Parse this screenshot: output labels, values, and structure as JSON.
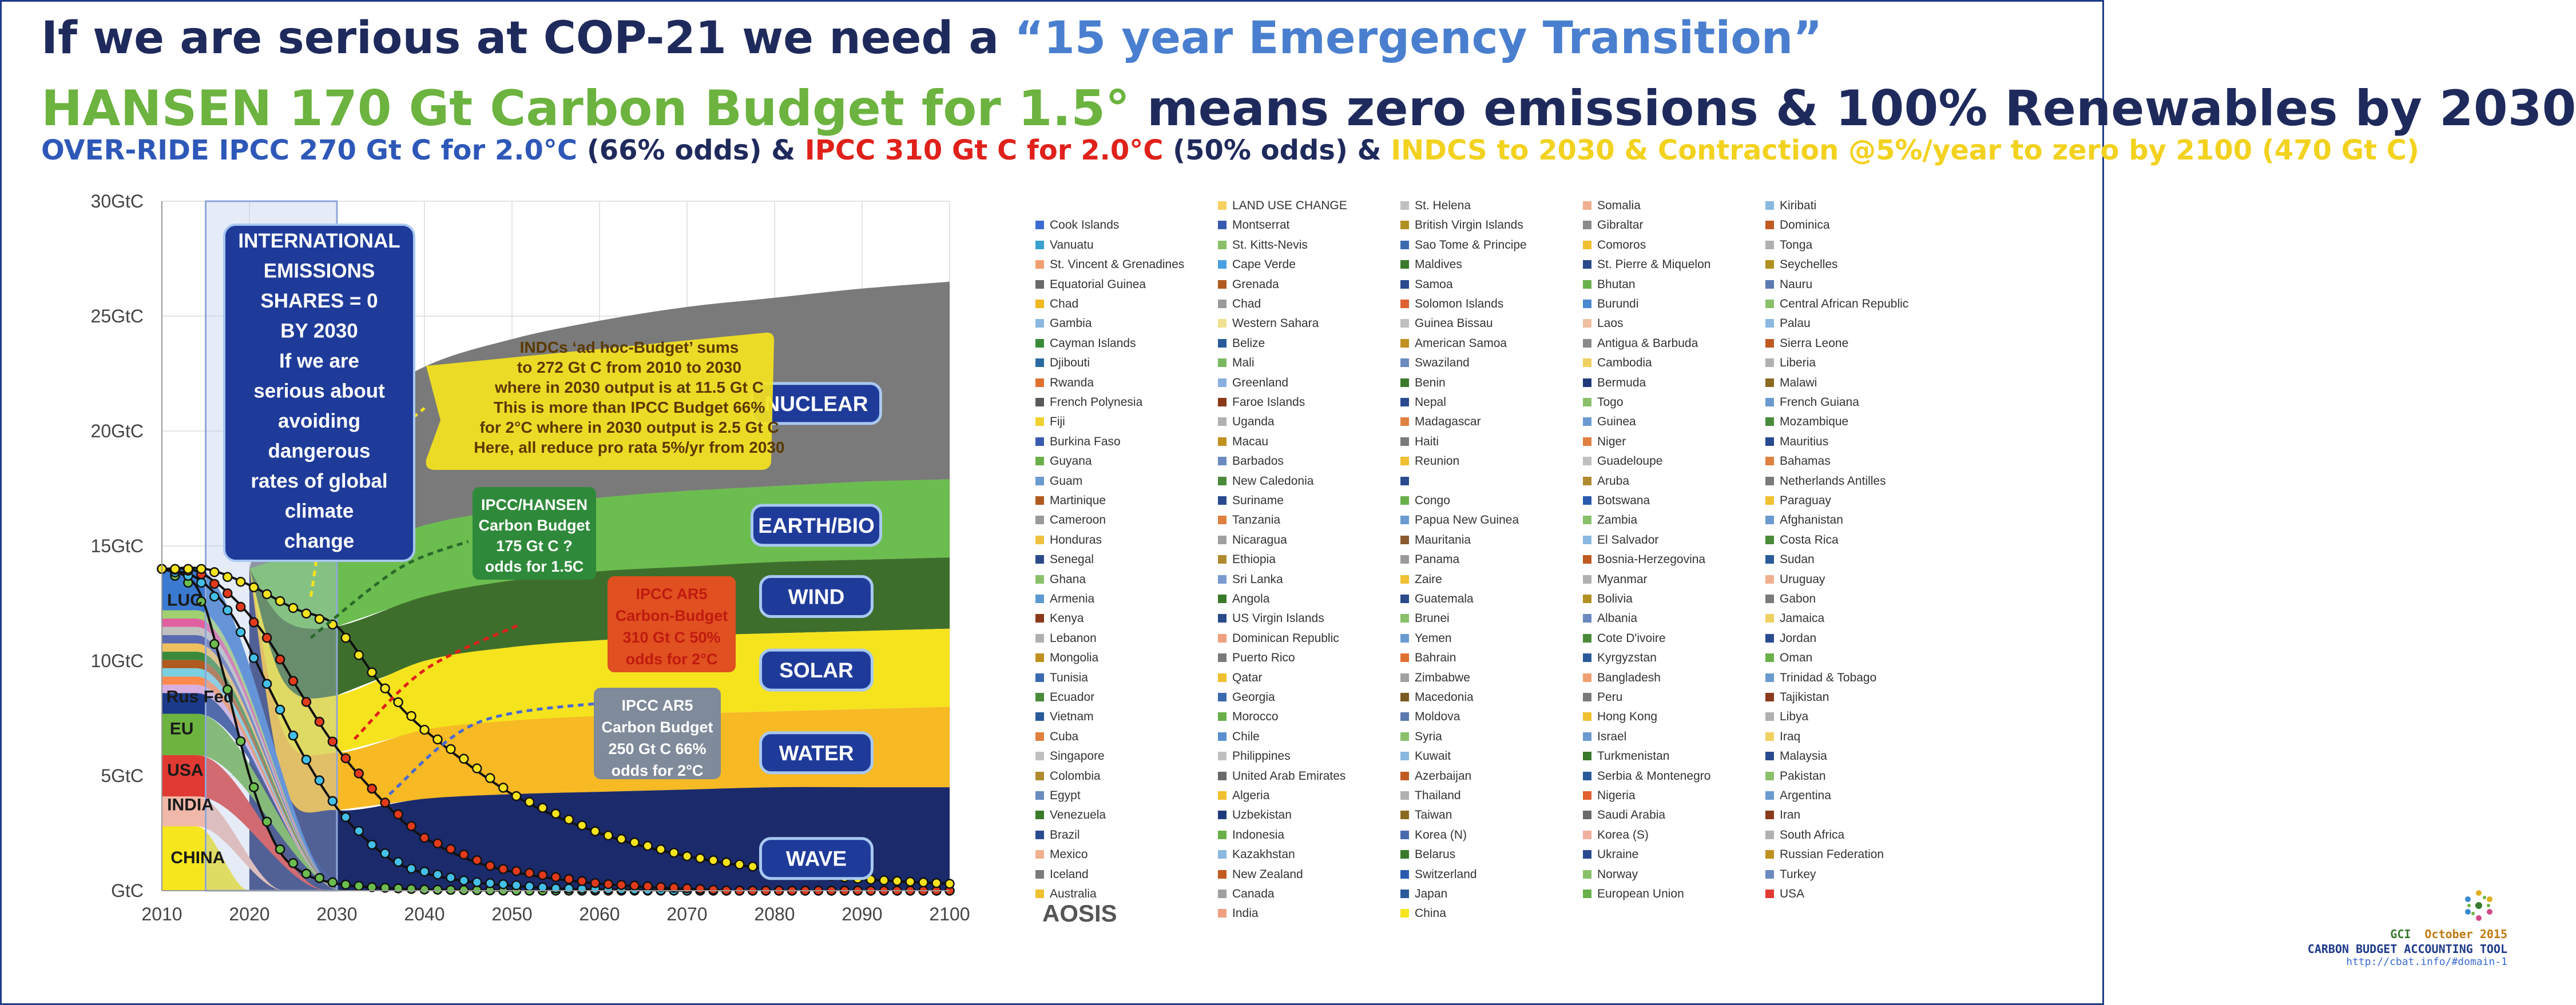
{
  "header": {
    "line1_a": "If we are serious at COP-21 we need a ",
    "line1_b": "“15 year Emergency Transition”",
    "line2_a": "HANSEN 170 Gt Carbon Budget for 1.5°",
    "line2_b": " means zero emissions & 100% Renewables by 2030",
    "line3_a": "OVER-RIDE IPCC 270 Gt C for 2.0°C",
    "line3_b": " (66% odds) & ",
    "line3_c": "IPCC 310 Gt C for 2.0°C",
    "line3_d": " (50% odds) & ",
    "line3_e": "INDCS to 2030 & Contraction @5%/year to zero by 2100 (470 Gt C)"
  },
  "chart_data": {
    "type": "area",
    "x": [
      2010,
      2020,
      2030,
      2040,
      2050,
      2060,
      2070,
      2080,
      2090,
      2100
    ],
    "xlim": [
      2010,
      2100
    ],
    "ylim": [
      0,
      30
    ],
    "x_ticks": [
      "2010",
      "2020",
      "2030",
      "2040",
      "2050",
      "2060",
      "2070",
      "2080",
      "2090",
      "2100"
    ],
    "y_ticks": [
      "GtC",
      "5GtC",
      "10GtC",
      "15GtC",
      "20GtC",
      "25GtC",
      "30GtC"
    ],
    "renewables_stack": {
      "names": [
        "WAVE",
        "WATER",
        "SOLAR",
        "WIND",
        "EARTH/BIO",
        "NUCLEAR"
      ],
      "colors": [
        "#1b2a6b",
        "#f7b924",
        "#f5e31e",
        "#3e6e2c",
        "#6cbd4f",
        "#7a7a7a"
      ],
      "cumulative_tops": [
        [
          0,
          0,
          3.5,
          4.0,
          4.2,
          4.3,
          4.4,
          4.5,
          4.5,
          4.5
        ],
        [
          0,
          0,
          6.0,
          7.0,
          7.4,
          7.6,
          7.7,
          7.8,
          7.9,
          8.0
        ],
        [
          0,
          0,
          8.5,
          10.0,
          10.6,
          10.9,
          11.1,
          11.2,
          11.3,
          11.4
        ],
        [
          0,
          0,
          11.5,
          12.8,
          13.5,
          13.9,
          14.1,
          14.3,
          14.4,
          14.5
        ],
        [
          0,
          0,
          14.5,
          15.9,
          16.6,
          17.1,
          17.4,
          17.6,
          17.8,
          17.9
        ],
        [
          0,
          0,
          20.5,
          22.8,
          24.0,
          24.8,
          25.4,
          25.8,
          26.2,
          26.5
        ]
      ]
    },
    "regional_stack_2010": {
      "names": [
        "CHINA",
        "INDIA",
        "USA",
        "EU",
        "Rus Fed",
        "LUC"
      ],
      "colors": [
        "#f5e61e",
        "#f0b8a8",
        "#e03a32",
        "#6cb33f",
        "#1b3a8a",
        "#3a7ad0"
      ],
      "tops": [
        2.8,
        4.1,
        5.9,
        7.7,
        8.6,
        14.0
      ]
    },
    "curves": [
      {
        "name": "IPCC/HANSEN Carbon Budget",
        "color": "#6cbd4f",
        "x": [
          2010,
          2014,
          2017,
          2020,
          2023,
          2026,
          2030,
          2034,
          2040,
          2050
        ],
        "y": [
          14.0,
          13.2,
          9.5,
          5.0,
          2.0,
          0.8,
          0.3,
          0.15,
          0.05,
          0
        ]
      },
      {
        "name": "IPCC AR5 Carbon Budget 250 Gt C 66%",
        "color": "#44c0e8",
        "x": [
          2010,
          2014,
          2018,
          2022,
          2026,
          2030,
          2034,
          2038,
          2045,
          2055,
          2070
        ],
        "y": [
          14.0,
          13.6,
          12.0,
          9.0,
          6.0,
          3.6,
          2.0,
          1.0,
          0.4,
          0.1,
          0
        ]
      },
      {
        "name": "IPCC AR5 Carbon-Budget 310 Gt C 50%",
        "color": "#e23a1c",
        "x": [
          2010,
          2014,
          2018,
          2022,
          2026,
          2030,
          2035,
          2040,
          2048,
          2060,
          2075
        ],
        "y": [
          14.0,
          13.9,
          12.8,
          11.0,
          8.5,
          6.2,
          4.0,
          2.3,
          1.0,
          0.3,
          0
        ]
      },
      {
        "name": "INDCs ad hoc-Budget",
        "color": "#f5e31e",
        "x": [
          2010,
          2015,
          2020,
          2025,
          2030,
          2035,
          2040,
          2050,
          2060,
          2070,
          2080,
          2090,
          2100
        ],
        "y": [
          14.0,
          14.0,
          13.3,
          12.3,
          11.5,
          9.0,
          7.0,
          4.2,
          2.5,
          1.5,
          0.9,
          0.5,
          0.3
        ]
      }
    ],
    "annotations": {
      "international": [
        "INTERNATIONAL",
        "EMISSIONS",
        "SHARES = 0",
        "BY 2030",
        "If we are",
        "serious about",
        "avoiding",
        "dangerous",
        "rates of global",
        "climate",
        "change"
      ],
      "indcs": [
        "INDCs ‘ad hoc-Budget’ sums",
        "to 272 Gt C from 2010 to 2030",
        "where in 2030 output is at 11.5 Gt C",
        "This is more than IPCC Budget 66%",
        "for 2°C where in 2030 output is 2.5 Gt C",
        "Here, all reduce pro rata 5%/yr from 2030"
      ],
      "hansen": [
        "IPCC/HANSEN",
        "Carbon Budget",
        "175 Gt C ?",
        "odds for 1.5C"
      ],
      "ar5_50": [
        "IPCC AR5",
        "Carbon-Budget",
        "310 Gt C 50%",
        "odds for 2°C"
      ],
      "ar5_66": [
        "IPCC AR5",
        "Carbon Budget",
        "250 Gt C 66%",
        "odds for 2°C"
      ]
    }
  },
  "legend": {
    "columns": [
      [
        [
          "#ffffff",
          ""
        ],
        [
          "#3b6bd0",
          "Cook Islands"
        ],
        [
          "#3aa0d0",
          "Vanuatu"
        ],
        [
          "#f0a070",
          "St. Vincent & Grenadines"
        ],
        [
          "#6a6a6a",
          "Equatorial Guinea"
        ],
        [
          "#f0b820",
          "Chad"
        ],
        [
          "#8ab8e0",
          "Gambia"
        ],
        [
          "#3a8a3a",
          "Cayman Islands"
        ],
        [
          "#2a6aa0",
          "Djibouti"
        ],
        [
          "#e07030",
          "Rwanda"
        ],
        [
          "#5a5a5a",
          "French Polynesia"
        ],
        [
          "#f0d030",
          "Fiji"
        ],
        [
          "#3a5ab0",
          "Burkina Faso"
        ],
        [
          "#6ab04a",
          "Guyana"
        ],
        [
          "#6a9ad0",
          "Guam"
        ],
        [
          "#b05a20",
          "Martinique"
        ],
        [
          "#9a9a9a",
          "Cameroon"
        ],
        [
          "#f0c040",
          "Honduras"
        ],
        [
          "#2a4a8a",
          "Senegal"
        ],
        [
          "#8ac06a",
          "Ghana"
        ],
        [
          "#5a9ad0",
          "Armenia"
        ],
        [
          "#8a3a1a",
          "Kenya"
        ],
        [
          "#b0b0b0",
          "Lebanon"
        ],
        [
          "#c09020",
          "Mongolia"
        ],
        [
          "#3a6ab0",
          "Tunisia"
        ],
        [
          "#4a8a3a",
          "Ecuador"
        ],
        [
          "#2a5a9a",
          "Vietnam"
        ],
        [
          "#e08040",
          "Cuba"
        ],
        [
          "#c0c0c0",
          "Singapore"
        ],
        [
          "#b08a30",
          "Colombia"
        ],
        [
          "#6a8ac0",
          "Egypt"
        ],
        [
          "#3a7a2a",
          "Venezuela"
        ],
        [
          "#2a4a90",
          "Brazil"
        ],
        [
          "#f0b090",
          "Mexico"
        ],
        [
          "#7a7a7a",
          "Iceland"
        ],
        [
          "#f0c030",
          "Australia"
        ]
      ],
      [
        [
          "#f7d060",
          "LAND USE CHANGE"
        ],
        [
          "#3a5ab0",
          "Montserrat"
        ],
        [
          "#8ac06a",
          "St. Kitts-Nevis"
        ],
        [
          "#4aa0e0",
          "Cape Verde"
        ],
        [
          "#b05a20",
          "Grenada"
        ],
        [
          "#9a9a9a",
          "Chad"
        ],
        [
          "#f0e090",
          "Western Sahara"
        ],
        [
          "#2a5a9a",
          "Belize"
        ],
        [
          "#7ab860",
          "Mali"
        ],
        [
          "#8ab0e0",
          "Greenland"
        ],
        [
          "#8a3a1a",
          "Faroe Islands"
        ],
        [
          "#b0b0b0",
          "Uganda"
        ],
        [
          "#c09020",
          "Macau"
        ],
        [
          "#6a8ac0",
          "Barbados"
        ],
        [
          "#4a8a3a",
          "New Caledonia"
        ],
        [
          "#2a4a90",
          "Suriname"
        ],
        [
          "#e08040",
          "Tanzania"
        ],
        [
          "#a0a0a0",
          "Nicaragua"
        ],
        [
          "#b08a30",
          "Ethiopia"
        ],
        [
          "#7a9ad0",
          "Sri Lanka"
        ],
        [
          "#3a7a2a",
          "Angola"
        ],
        [
          "#2a4a8a",
          "US Virgin Islands"
        ],
        [
          "#f0a080",
          "Dominican Republic"
        ],
        [
          "#7a7a7a",
          "Puerto Rico"
        ],
        [
          "#f0c030",
          "Qatar"
        ],
        [
          "#3a6ab0",
          "Georgia"
        ],
        [
          "#6ab04a",
          "Morocco"
        ],
        [
          "#5a90d0",
          "Chile"
        ],
        [
          "#c0c0c0",
          "Philippines"
        ],
        [
          "#6a6a6a",
          "United Arab Emirates"
        ],
        [
          "#f0c030",
          "Algeria"
        ],
        [
          "#1f3a7a",
          "Uzbekistan"
        ],
        [
          "#6ab04a",
          "Indonesia"
        ],
        [
          "#8ab8e0",
          "Kazakhstan"
        ],
        [
          "#c05a20",
          "New Zealand"
        ],
        [
          "#a0a0a0",
          "Canada"
        ],
        [
          "#f0a080",
          "India"
        ]
      ],
      [
        [
          "#c0c0c0",
          "St. Helena"
        ],
        [
          "#b09020",
          "British Virgin Islands"
        ],
        [
          "#3a6ab0",
          "Sao Tome & Principe"
        ],
        [
          "#3a7a2a",
          "Maldives"
        ],
        [
          "#2a4a90",
          "Samoa"
        ],
        [
          "#e06030",
          "Solomon Islands"
        ],
        [
          "#c0c0c0",
          "Guinea Bissau"
        ],
        [
          "#c09020",
          "American Samoa"
        ],
        [
          "#6a8ac0",
          "Swaziland"
        ],
        [
          "#3a7a2a",
          "Benin"
        ],
        [
          "#2a4a90",
          "Nepal"
        ],
        [
          "#e08040",
          "Madagascar"
        ],
        [
          "#7a7a7a",
          "Haiti"
        ],
        [
          "#f0c030",
          "Reunion"
        ],
        [
          "#2a4a90",
          ""
        ],
        [
          "#6ab04a",
          "Congo"
        ],
        [
          "#6a9ad0",
          "Papua New Guinea"
        ],
        [
          "#8a5a30",
          "Mauritania"
        ],
        [
          "#9a9a9a",
          "Panama"
        ],
        [
          "#f0c030",
          "Zaire"
        ],
        [
          "#2a4a8a",
          "Guatemala"
        ],
        [
          "#8ac06a",
          "Brunei"
        ],
        [
          "#6a9ad0",
          "Yemen"
        ],
        [
          "#e07030",
          "Bahrain"
        ],
        [
          "#a0a0a0",
          "Zimbabwe"
        ],
        [
          "#7a5a20",
          "Macedonia"
        ],
        [
          "#5a7ab0",
          "Moldova"
        ],
        [
          "#8ac06a",
          "Syria"
        ],
        [
          "#8ab8e0",
          "Kuwait"
        ],
        [
          "#c05a20",
          "Azerbaijan"
        ],
        [
          "#b0b0b0",
          "Thailand"
        ],
        [
          "#8a6a20",
          "Taiwan"
        ],
        [
          "#4a6ab0",
          "Korea (N)"
        ],
        [
          "#3a7a2a",
          "Belarus"
        ],
        [
          "#2a5ab0",
          "Switzerland"
        ],
        [
          "#2a5a9a",
          "Japan"
        ],
        [
          "#f5e61e",
          "China"
        ]
      ],
      [
        [
          "#f0b090",
          "Somalia"
        ],
        [
          "#8a8a8a",
          "Gibraltar"
        ],
        [
          "#f0c030",
          "Comoros"
        ],
        [
          "#2a4a8a",
          "St. Pierre & Miquelon"
        ],
        [
          "#6ab04a",
          "Bhutan"
        ],
        [
          "#4a8ad0",
          "Burundi"
        ],
        [
          "#f0c0a0",
          "Laos"
        ],
        [
          "#8a8a8a",
          "Antigua & Barbuda"
        ],
        [
          "#f0d060",
          "Cambodia"
        ],
        [
          "#1f3a7a",
          "Bermuda"
        ],
        [
          "#8ac06a",
          "Togo"
        ],
        [
          "#6a9ad0",
          "Guinea"
        ],
        [
          "#e08040",
          "Niger"
        ],
        [
          "#c0c0c0",
          "Guadeloupe"
        ],
        [
          "#b08a30",
          "Aruba"
        ],
        [
          "#2a5ab0",
          "Botswana"
        ],
        [
          "#8ac06a",
          "Zambia"
        ],
        [
          "#8ab8e0",
          "El Salvador"
        ],
        [
          "#c05a20",
          "Bosnia-Herzegovina"
        ],
        [
          "#b0b0b0",
          "Myanmar"
        ],
        [
          "#b09020",
          "Bolivia"
        ],
        [
          "#6a8ac0",
          "Albania"
        ],
        [
          "#4a8a3a",
          "Cote D'ivoire"
        ],
        [
          "#2a5a9a",
          "Kyrgyzstan"
        ],
        [
          "#f0a070",
          "Bangladesh"
        ],
        [
          "#7a7a7a",
          "Peru"
        ],
        [
          "#f0c030",
          "Hong Kong"
        ],
        [
          "#6a9ad0",
          "Israel"
        ],
        [
          "#3a7a2a",
          "Turkmenistan"
        ],
        [
          "#2a5a9a",
          "Serbia & Montenegro"
        ],
        [
          "#e06030",
          "Nigeria"
        ],
        [
          "#6a6a6a",
          "Saudi Arabia"
        ],
        [
          "#f0b0a0",
          "Korea (S)"
        ],
        [
          "#2a4a90",
          "Ukraine"
        ],
        [
          "#8ac06a",
          "Norway"
        ],
        [
          "#6ab04a",
          "European Union"
        ]
      ],
      [
        [
          "#8ab8e0",
          "Kiribati"
        ],
        [
          "#c05a20",
          "Dominica"
        ],
        [
          "#b0b0b0",
          "Tonga"
        ],
        [
          "#b09020",
          "Seychelles"
        ],
        [
          "#5a7ab0",
          "Nauru"
        ],
        [
          "#8ac06a",
          "Central African Republic"
        ],
        [
          "#8ab8e0",
          "Palau"
        ],
        [
          "#c05a20",
          "Sierra Leone"
        ],
        [
          "#b0b0b0",
          "Liberia"
        ],
        [
          "#8a6a20",
          "Malawi"
        ],
        [
          "#6a9ad0",
          "French Guiana"
        ],
        [
          "#4a8a3a",
          "Mozambique"
        ],
        [
          "#2a4a90",
          "Mauritius"
        ],
        [
          "#e08040",
          "Bahamas"
        ],
        [
          "#7a7a7a",
          "Netherlands Antilles"
        ],
        [
          "#f0c030",
          "Paraguay"
        ],
        [
          "#6a9ad0",
          "Afghanistan"
        ],
        [
          "#4a8a3a",
          "Costa Rica"
        ],
        [
          "#2a5a9a",
          "Sudan"
        ],
        [
          "#f0b090",
          "Uruguay"
        ],
        [
          "#7a7a7a",
          "Gabon"
        ],
        [
          "#f0d060",
          "Jamaica"
        ],
        [
          "#2a4a90",
          "Jordan"
        ],
        [
          "#6ab04a",
          "Oman"
        ],
        [
          "#6a9ad0",
          "Trinidad & Tobago"
        ],
        [
          "#8a3a1a",
          "Tajikistan"
        ],
        [
          "#b0b0b0",
          "Libya"
        ],
        [
          "#f0d060",
          "Iraq"
        ],
        [
          "#2a4a90",
          "Malaysia"
        ],
        [
          "#8ac06a",
          "Pakistan"
        ],
        [
          "#6a9ad0",
          "Argentina"
        ],
        [
          "#8a3a1a",
          "Iran"
        ],
        [
          "#b0b0b0",
          "South Africa"
        ],
        [
          "#c09020",
          "Russian Federation"
        ],
        [
          "#6a8ac0",
          "Turkey"
        ],
        [
          "#e03a32",
          "USA"
        ]
      ]
    ]
  },
  "footer": {
    "aosis": "AOSIS",
    "gci": "GCI",
    "month": "October 2015",
    "tool": "CARBON BUDGET ACCOUNTING TOOL",
    "url": "http://cbat.info/#domain-1"
  },
  "colors": {
    "title": "#1f2a5c",
    "highlight_blue": "#4a7fd0",
    "green": "#6cb33f",
    "red": "#e0211b",
    "yellow": "#f2d21f",
    "frame": "#1f3b8a"
  }
}
